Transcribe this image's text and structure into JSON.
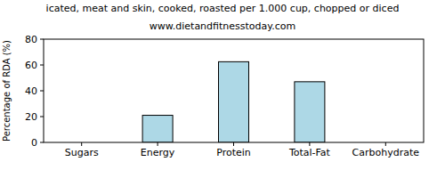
{
  "chart_data": {
    "type": "bar",
    "title": "icated, meat and skin, cooked, roasted per 1.000 cup, chopped or diced",
    "subtitle": "www.dietandfitnesstoday.com",
    "y_label": "Percentage of RDA (%)",
    "categories": [
      "Sugars",
      "Energy",
      "Protein",
      "Total-Fat",
      "Carbohydrate"
    ],
    "values": [
      0,
      21,
      62.5,
      47,
      0
    ],
    "color": "#add8e6",
    "ylim": [
      0,
      80
    ],
    "yticks": [
      0,
      20,
      40,
      60,
      80
    ],
    "grid": false
  }
}
